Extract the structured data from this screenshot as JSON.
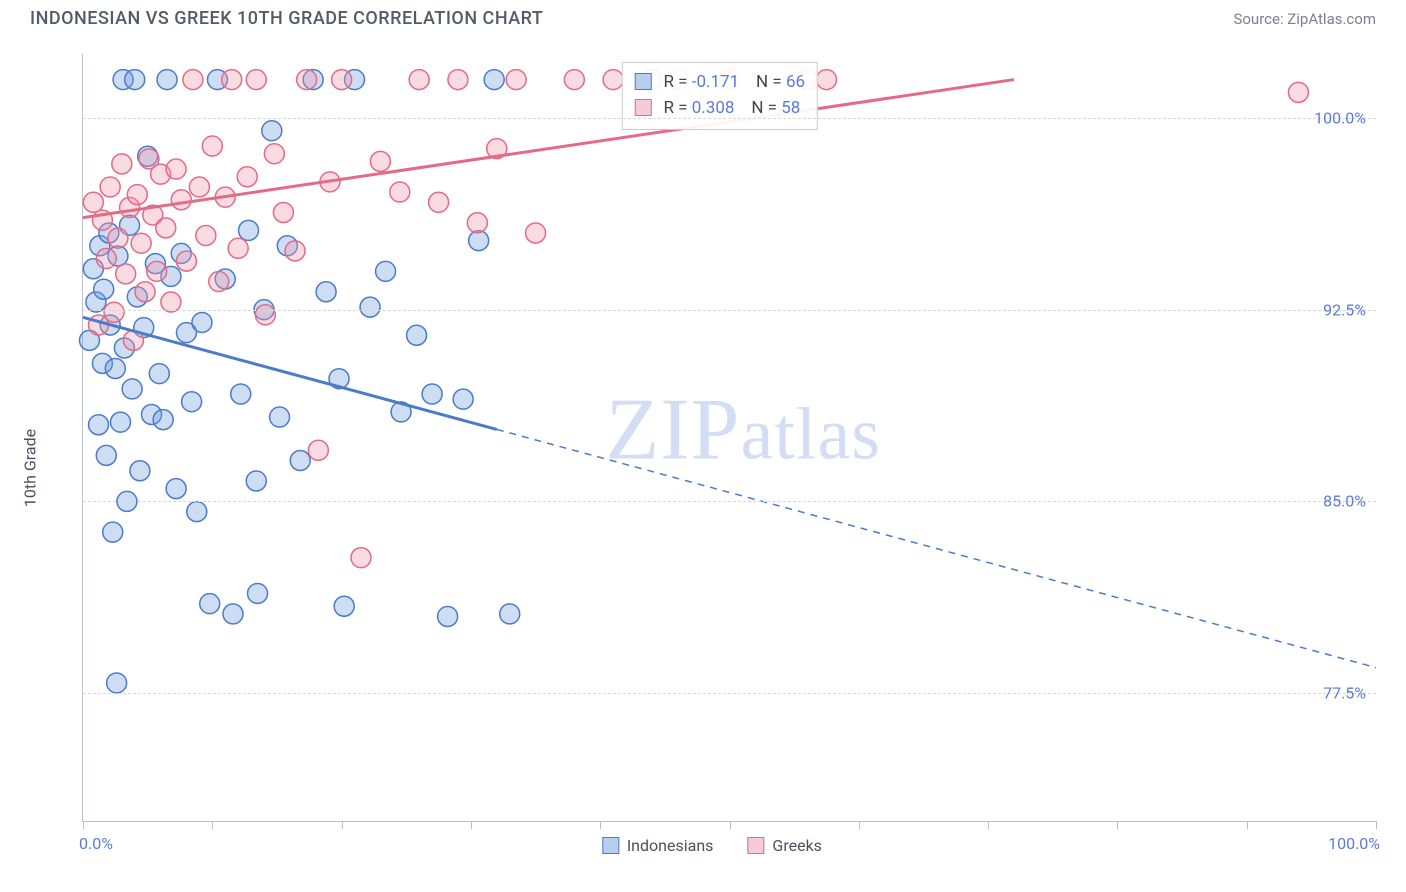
{
  "title": "INDONESIAN VS GREEK 10TH GRADE CORRELATION CHART",
  "source_text": "Source: ZipAtlas.com",
  "y_axis_label": "10th Grade",
  "watermark": {
    "zip": "ZIP",
    "atlas": "atlas"
  },
  "plot": {
    "type": "scatter",
    "xlim": [
      0,
      100
    ],
    "ylim": [
      72.5,
      102.5
    ],
    "x_ticks": [
      0,
      10,
      20,
      30,
      40,
      50,
      60,
      70,
      80,
      90,
      100
    ],
    "y_ticks": [
      77.5,
      85.0,
      92.5,
      100.0
    ],
    "y_tick_labels": [
      "77.5%",
      "85.0%",
      "92.5%",
      "100.0%"
    ],
    "x_min_label": "0.0%",
    "x_max_label": "100.0%",
    "point_radius": 10,
    "grid_color": "#d6d9dd",
    "background_color": "#ffffff"
  },
  "series": [
    {
      "name": "Indonesians",
      "color_fill": "#6f9fe0",
      "color_stroke": "#4c7bc7",
      "R": "-0.171",
      "N": "66",
      "trend": {
        "x1": 0,
        "y1": 92.2,
        "x_solid_end": 32,
        "x2": 100,
        "y2": 78.5
      },
      "points": [
        [
          0.5,
          91.3
        ],
        [
          0.8,
          94.1
        ],
        [
          1.0,
          92.8
        ],
        [
          1.2,
          88.0
        ],
        [
          1.3,
          95.0
        ],
        [
          1.5,
          90.4
        ],
        [
          1.6,
          93.3
        ],
        [
          1.8,
          86.8
        ],
        [
          2.0,
          95.5
        ],
        [
          2.1,
          91.9
        ],
        [
          2.3,
          83.8
        ],
        [
          2.5,
          90.2
        ],
        [
          2.6,
          77.9
        ],
        [
          2.7,
          94.6
        ],
        [
          2.9,
          88.1
        ],
        [
          3.1,
          101.5
        ],
        [
          3.2,
          91.0
        ],
        [
          3.4,
          85.0
        ],
        [
          3.6,
          95.8
        ],
        [
          3.8,
          89.4
        ],
        [
          4.0,
          101.5
        ],
        [
          4.2,
          93.0
        ],
        [
          4.4,
          86.2
        ],
        [
          4.7,
          91.8
        ],
        [
          5.0,
          98.5
        ],
        [
          5.3,
          88.4
        ],
        [
          5.6,
          94.3
        ],
        [
          5.9,
          90.0
        ],
        [
          6.2,
          88.2
        ],
        [
          6.5,
          101.5
        ],
        [
          6.8,
          93.8
        ],
        [
          7.2,
          85.5
        ],
        [
          7.6,
          94.7
        ],
        [
          8.0,
          91.6
        ],
        [
          8.4,
          88.9
        ],
        [
          8.8,
          84.6
        ],
        [
          9.2,
          92.0
        ],
        [
          9.8,
          81.0
        ],
        [
          10.4,
          101.5
        ],
        [
          11.0,
          93.7
        ],
        [
          11.6,
          80.6
        ],
        [
          12.2,
          89.2
        ],
        [
          12.8,
          95.6
        ],
        [
          13.4,
          85.8
        ],
        [
          13.5,
          81.4
        ],
        [
          14.0,
          92.5
        ],
        [
          14.6,
          99.5
        ],
        [
          15.2,
          88.3
        ],
        [
          15.8,
          95.0
        ],
        [
          16.8,
          86.6
        ],
        [
          17.8,
          101.5
        ],
        [
          18.8,
          93.2
        ],
        [
          19.8,
          89.8
        ],
        [
          20.2,
          80.9
        ],
        [
          21.0,
          101.5
        ],
        [
          22.2,
          92.6
        ],
        [
          23.4,
          94.0
        ],
        [
          24.6,
          88.5
        ],
        [
          25.8,
          91.5
        ],
        [
          27.0,
          89.2
        ],
        [
          28.2,
          80.5
        ],
        [
          29.4,
          89.0
        ],
        [
          30.6,
          95.2
        ],
        [
          31.8,
          101.5
        ],
        [
          33.0,
          80.6
        ],
        [
          44.0,
          101.5
        ]
      ]
    },
    {
      "name": "Greeks",
      "color_fill": "#f098ac",
      "color_stroke": "#e46a86",
      "R": "0.308",
      "N": "58",
      "trend": {
        "x1": 0,
        "y1": 96.1,
        "x2": 72,
        "y2": 101.5
      },
      "points": [
        [
          0.8,
          96.7
        ],
        [
          1.2,
          91.9
        ],
        [
          1.5,
          96.0
        ],
        [
          1.8,
          94.5
        ],
        [
          2.1,
          97.3
        ],
        [
          2.4,
          92.4
        ],
        [
          2.7,
          95.3
        ],
        [
          3.0,
          98.2
        ],
        [
          3.3,
          93.9
        ],
        [
          3.6,
          96.5
        ],
        [
          3.9,
          91.3
        ],
        [
          4.2,
          97.0
        ],
        [
          4.5,
          95.1
        ],
        [
          4.8,
          93.2
        ],
        [
          5.1,
          98.4
        ],
        [
          5.4,
          96.2
        ],
        [
          5.7,
          94.0
        ],
        [
          6.0,
          97.8
        ],
        [
          6.4,
          95.7
        ],
        [
          6.8,
          92.8
        ],
        [
          7.2,
          98.0
        ],
        [
          7.6,
          96.8
        ],
        [
          8.0,
          94.4
        ],
        [
          8.5,
          101.5
        ],
        [
          9.0,
          97.3
        ],
        [
          9.5,
          95.4
        ],
        [
          10.0,
          98.9
        ],
        [
          10.5,
          93.6
        ],
        [
          11.0,
          96.9
        ],
        [
          11.5,
          101.5
        ],
        [
          12.0,
          94.9
        ],
        [
          12.7,
          97.7
        ],
        [
          13.4,
          101.5
        ],
        [
          14.1,
          92.3
        ],
        [
          14.8,
          98.6
        ],
        [
          15.5,
          96.3
        ],
        [
          16.4,
          94.8
        ],
        [
          17.3,
          101.5
        ],
        [
          18.2,
          87.0
        ],
        [
          19.1,
          97.5
        ],
        [
          20.0,
          101.5
        ],
        [
          21.5,
          82.8
        ],
        [
          23.0,
          98.3
        ],
        [
          24.5,
          97.1
        ],
        [
          26.0,
          101.5
        ],
        [
          27.5,
          96.7
        ],
        [
          29.0,
          101.5
        ],
        [
          30.5,
          95.9
        ],
        [
          32.0,
          98.8
        ],
        [
          33.5,
          101.5
        ],
        [
          35.0,
          95.5
        ],
        [
          38.0,
          101.5
        ],
        [
          41.0,
          101.5
        ],
        [
          46.0,
          101.5
        ],
        [
          50.0,
          101.5
        ],
        [
          56.0,
          101.5
        ],
        [
          57.5,
          101.5
        ],
        [
          94.0,
          101.0
        ]
      ]
    }
  ],
  "legend": {
    "series1": "Indonesians",
    "series2": "Greeks"
  },
  "stats_labels": {
    "R": "R",
    "N": "N",
    "eq": "="
  }
}
